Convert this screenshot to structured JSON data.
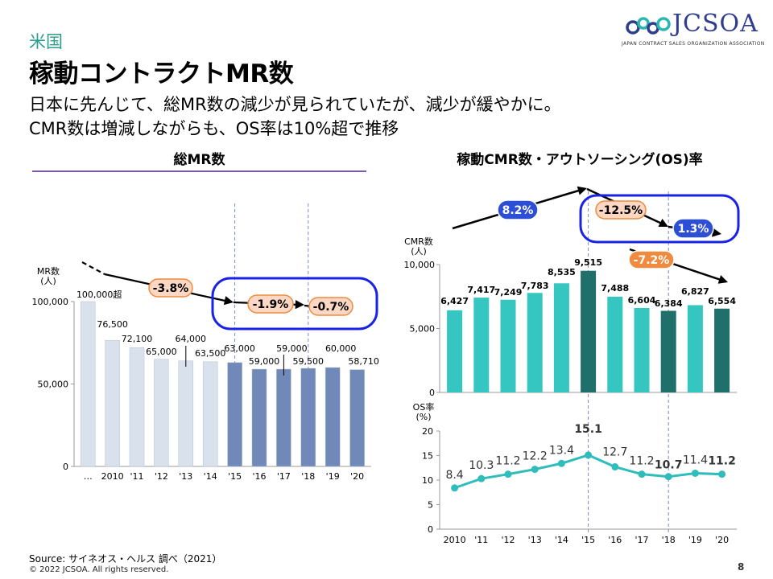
{
  "header": {
    "region": "米国",
    "title": "稼動コントラクトMR数",
    "subtitle_line1": "日本に先んじて、総MR数の減少が見られていたが、減少が緩やかに。",
    "subtitle_line2": "CMR数は増減しながらも、OS率は10%超で推移"
  },
  "logo": {
    "name": "JCSOA",
    "tagline": "JAPAN CONTRACT SALES ORGANIZATION ASSOCIATION",
    "colors": [
      "#2e3d8f",
      "#2bb7b0"
    ]
  },
  "footer": {
    "source": "Source: サイネオス・ヘルス 調べ（2021）",
    "copyright": "© 2022 JCSOA. All rights reserved.",
    "page": "8"
  },
  "colors": {
    "light_bar": "#d9e1ec",
    "dark_bar": "#7089b8",
    "teal_bar": "#35c6c2",
    "teal_dark_bar": "#1f6f6a",
    "line": "#2fbdbb",
    "callout_fill": "#fbd7c4",
    "callout_blue": "#2c4fd6",
    "callout_orange": "#f08a3e",
    "oval": "#1a22e6",
    "underline": "#7e5aa6"
  },
  "chart_data": [
    {
      "type": "bar",
      "title": "総MR数",
      "ylabel": "MR数\n(人)",
      "ylim": [
        0,
        100000
      ],
      "yticks": [
        "0",
        "50,000",
        "100,000"
      ],
      "yticks_values": [
        0,
        50000,
        100000
      ],
      "categories": [
        "…",
        "2010",
        "'11",
        "'12",
        "'13",
        "'14",
        "'15",
        "'16",
        "'17",
        "'18",
        "'19",
        "'20"
      ],
      "values": [
        100000,
        76500,
        72100,
        65000,
        64000,
        63500,
        63000,
        59000,
        59000,
        59500,
        60000,
        58710
      ],
      "labels": [
        "100,000超",
        "76,500",
        "72,100",
        "65,000",
        "64,000",
        "63,500",
        "63,000",
        "59,000",
        "59,000",
        "59,500",
        "60,000",
        "58,710"
      ],
      "highlight_from_index": 6,
      "annotations": [
        {
          "text": "-3.8%",
          "style": "orange"
        },
        {
          "text": "-1.9%",
          "style": "orange"
        },
        {
          "text": "-0.7%",
          "style": "orange"
        }
      ]
    },
    {
      "type": "bar",
      "title": "稼動CMR数・アウトソーシング(OS)率",
      "ylabel": "CMR数\n(人)",
      "ylim": [
        0,
        10000
      ],
      "yticks": [
        "0",
        "5,000",
        "10,000"
      ],
      "yticks_values": [
        0,
        5000,
        10000
      ],
      "categories": [
        "2010",
        "'11",
        "'12",
        "'13",
        "'14",
        "'15",
        "'16",
        "'17",
        "'18",
        "'19",
        "'20"
      ],
      "values": [
        6427,
        7417,
        7249,
        7783,
        8535,
        9515,
        7488,
        6604,
        6384,
        6827,
        6554
      ],
      "labels": [
        "6,427",
        "7,417",
        "7,249",
        "7,783",
        "8,535",
        "9,515",
        "7,488",
        "6,604",
        "6,384",
        "6,827",
        "6,554"
      ],
      "dark_indices": [
        5,
        8,
        10
      ],
      "annotations": [
        {
          "text": "8.2%",
          "style": "blue"
        },
        {
          "text": "-12.5%",
          "style": "orange"
        },
        {
          "text": "1.3%",
          "style": "blue"
        },
        {
          "text": "-7.2%",
          "style": "orange_solid"
        }
      ]
    },
    {
      "type": "line",
      "ylabel": "OS率\n(%)",
      "ylim": [
        0,
        20
      ],
      "yticks": [
        "0",
        "5",
        "10",
        "15",
        "20"
      ],
      "yticks_values": [
        0,
        5,
        10,
        15,
        20
      ],
      "categories": [
        "2010",
        "'11",
        "'12",
        "'13",
        "'14",
        "'15",
        "'16",
        "'17",
        "'18",
        "'19",
        "'20"
      ],
      "values": [
        8.4,
        10.3,
        11.2,
        12.2,
        13.4,
        15.1,
        12.7,
        11.2,
        10.7,
        11.4,
        11.2
      ],
      "bold_indices": [
        5,
        8,
        10
      ]
    }
  ]
}
